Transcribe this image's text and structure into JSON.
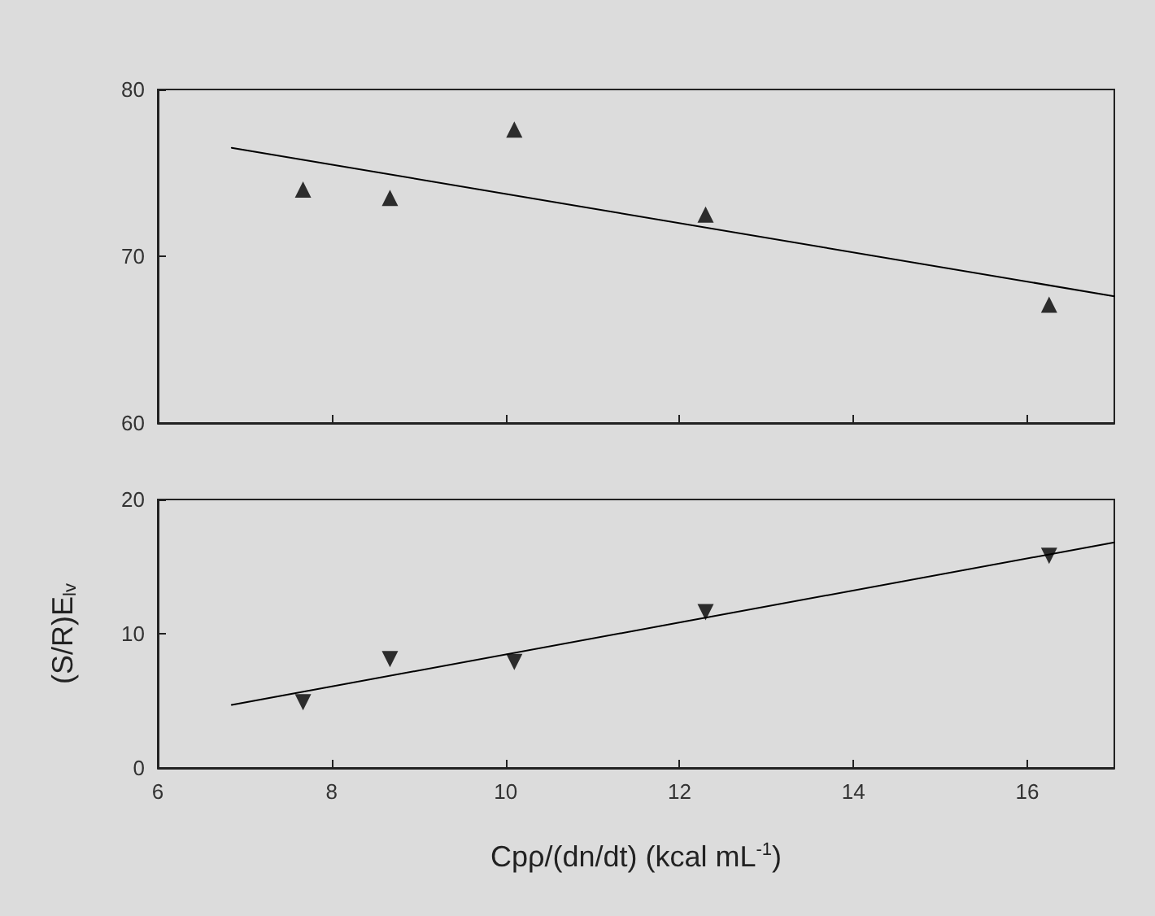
{
  "chart_data": [
    {
      "type": "scatter",
      "xlim": [
        6,
        17
      ],
      "xticks": [
        6,
        8,
        10,
        12,
        14,
        16
      ],
      "ylim": [
        60,
        80
      ],
      "yticks": [
        60,
        70,
        80
      ],
      "tick_labels": "y",
      "grid": false,
      "series": [
        {
          "color": "#000000",
          "marker": "triangle",
          "x": [
            7.67,
            8.67,
            10.1,
            12.3,
            16.25
          ],
          "values": [
            74.0,
            73.5,
            77.6,
            72.5,
            67.1
          ]
        },
        {
          "type": "line",
          "color": "#000000",
          "marker": "none",
          "line_style": "solid",
          "x": [
            6.85,
            17
          ],
          "values": [
            76.5,
            67.6
          ]
        }
      ]
    },
    {
      "type": "scatter",
      "xlabel": "Cpρ/(dn/dt) (kcal mL$^{-1}$)",
      "ylabel": "(S/R)E$_{lv}$",
      "xlim": [
        6,
        17
      ],
      "xticks": [
        6,
        8,
        10,
        12,
        14,
        16
      ],
      "ylim": [
        0,
        20
      ],
      "yticks": [
        0,
        10,
        20
      ],
      "grid": false,
      "series": [
        {
          "color": "#000000",
          "marker": "triangle-down",
          "x": [
            7.67,
            8.67,
            10.1,
            12.3,
            16.25
          ],
          "values": [
            4.9,
            8.1,
            7.9,
            11.6,
            15.8
          ]
        },
        {
          "type": "line",
          "color": "#000000",
          "marker": "none",
          "line_style": "solid",
          "x": [
            6.85,
            17
          ],
          "values": [
            4.7,
            16.8
          ]
        }
      ]
    }
  ]
}
